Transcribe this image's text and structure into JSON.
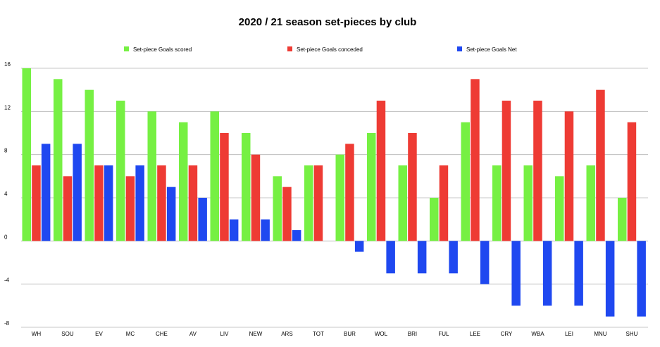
{
  "chart_data": {
    "type": "bar",
    "title": "2020 / 21 season set-pieces by club",
    "xlabel": "",
    "ylabel": "",
    "ylim": [
      -8,
      16
    ],
    "yticks": [
      -8,
      -4,
      0,
      4,
      8,
      12,
      16
    ],
    "grid": true,
    "legend_position": "top",
    "categories": [
      "WH",
      "SOU",
      "EV",
      "MC",
      "CHE",
      "AV",
      "LIV",
      "NEW",
      "ARS",
      "TOT",
      "BUR",
      "WOL",
      "BRI",
      "FUL",
      "LEE",
      "CRY",
      "WBA",
      "LEI",
      "MNU",
      "SHU"
    ],
    "series": [
      {
        "name": "Set-piece Goals scored",
        "color": "#76f043",
        "values": [
          16,
          15,
          14,
          13,
          12,
          11,
          12,
          10,
          6,
          7,
          8,
          10,
          7,
          4,
          11,
          7,
          7,
          6,
          7,
          4
        ]
      },
      {
        "name": "Set-piece Goals conceded",
        "color": "#ee3b34",
        "values": [
          7,
          6,
          7,
          6,
          7,
          7,
          10,
          8,
          5,
          7,
          9,
          13,
          10,
          7,
          15,
          13,
          13,
          12,
          14,
          11
        ]
      },
      {
        "name": "Set-piece Goals Net",
        "color": "#1f48f0",
        "values": [
          9,
          9,
          7,
          7,
          5,
          4,
          2,
          2,
          1,
          0,
          -1,
          -3,
          -3,
          -3,
          -4,
          -6,
          -6,
          -6,
          -7,
          -7
        ]
      }
    ]
  }
}
